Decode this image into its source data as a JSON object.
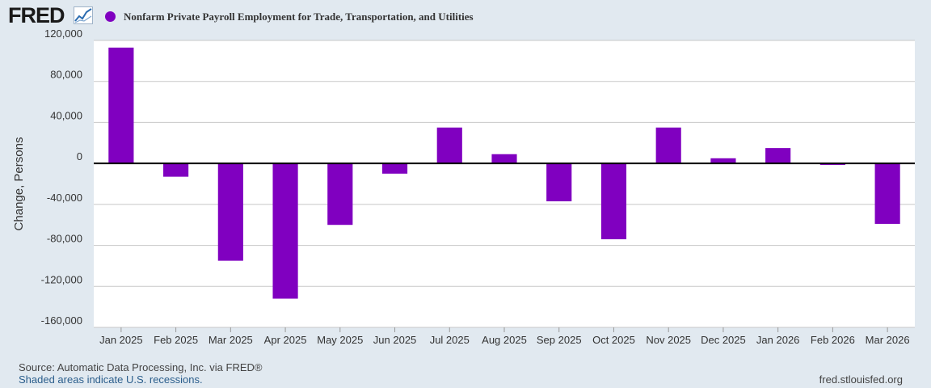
{
  "logo": {
    "text": "FRED",
    "icon": "trend-line-icon"
  },
  "colors": {
    "series": "#8000c0",
    "grid": "#c8c8c8",
    "zero_line": "#000000",
    "plot_bg": "#ffffff",
    "page_bg": "#e1e9f0"
  },
  "chart_data": {
    "type": "bar",
    "title": "Nonfarm Private Payroll Employment for Trade, Transportation, and Utilities",
    "ylabel": "Change, Persons",
    "xlabel": "",
    "ylim": [
      -160000,
      120000
    ],
    "yticks": [
      120000,
      80000,
      40000,
      0,
      -40000,
      -80000,
      -120000,
      -160000
    ],
    "ytick_labels": [
      "120,000",
      "80,000",
      "40,000",
      "0",
      "-40,000",
      "-80,000",
      "-120,000",
      "-160,000"
    ],
    "categories": [
      "Jan 2025",
      "Feb 2025",
      "Mar 2025",
      "Apr 2025",
      "May 2025",
      "Jun 2025",
      "Jul 2025",
      "Aug 2025",
      "Sep 2025",
      "Oct 2025",
      "Nov 2025",
      "Dec 2025",
      "Jan 2026",
      "Feb 2026",
      "Mar 2026"
    ],
    "values": [
      113000,
      -13000,
      -95000,
      -132000,
      -60000,
      -10000,
      35000,
      9000,
      -37000,
      -74000,
      35000,
      5000,
      15000,
      -1500,
      -59000
    ],
    "grid": true,
    "legend": "top-left"
  },
  "footer": {
    "source": "Source: Automatic Data Processing, Inc. via FRED®",
    "recession_note": "Shaded areas indicate U.S. recessions.",
    "url": "fred.stlouisfed.org"
  }
}
